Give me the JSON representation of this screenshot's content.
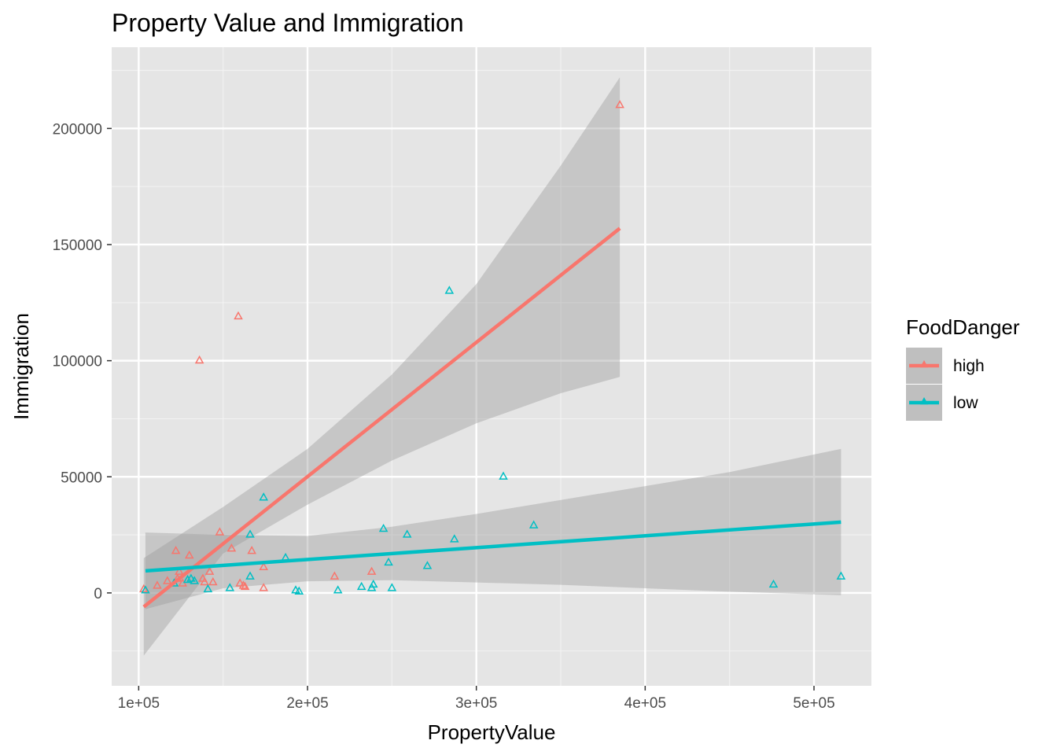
{
  "chart_data": {
    "type": "scatter",
    "title": "Property Value and Immigration",
    "xlabel": "PropertyValue",
    "ylabel": "Immigration",
    "xlim": [
      84000,
      534000
    ],
    "ylim": [
      -40000,
      235000
    ],
    "xticks": [
      100000,
      200000,
      300000,
      400000,
      500000
    ],
    "xtick_labels": [
      "1e+05",
      "2e+05",
      "3e+05",
      "4e+05",
      "5e+05"
    ],
    "yticks": [
      0,
      50000,
      100000,
      150000,
      200000
    ],
    "ytick_labels": [
      "0",
      "50000",
      "100000",
      "150000",
      "200000"
    ],
    "grid": true,
    "legend": {
      "title": "FoodDanger",
      "position": "right"
    },
    "series": [
      {
        "name": "high",
        "color": "#F8766D",
        "marker": "open-triangle",
        "points": [
          [
            103000,
            1500
          ],
          [
            111000,
            3000
          ],
          [
            117000,
            5000
          ],
          [
            122000,
            18000
          ],
          [
            123000,
            6000
          ],
          [
            124000,
            9000
          ],
          [
            126000,
            4000
          ],
          [
            130000,
            16000
          ],
          [
            136000,
            100000
          ],
          [
            138000,
            6000
          ],
          [
            139000,
            4500
          ],
          [
            142000,
            9000
          ],
          [
            144000,
            4500
          ],
          [
            148000,
            26000
          ],
          [
            155000,
            19000
          ],
          [
            159000,
            119000
          ],
          [
            160000,
            4000
          ],
          [
            162000,
            3000
          ],
          [
            163000,
            2500
          ],
          [
            167000,
            18000
          ],
          [
            174000,
            11000
          ],
          [
            174000,
            2000
          ],
          [
            216000,
            7000
          ],
          [
            238000,
            9000
          ],
          [
            385000,
            210000
          ]
        ],
        "trend": {
          "x": [
            103000,
            385000
          ],
          "y": [
            -6000,
            157000
          ]
        },
        "band": {
          "x": [
            103000,
            150000,
            200000,
            250000,
            300000,
            350000,
            385000
          ],
          "lower": [
            -27000,
            17000,
            38000,
            57000,
            73000,
            86000,
            93000
          ],
          "upper": [
            15000,
            37000,
            62000,
            94000,
            133000,
            184000,
            222000
          ]
        }
      },
      {
        "name": "low",
        "color": "#00BFC4",
        "marker": "open-triangle",
        "points": [
          [
            104000,
            1000
          ],
          [
            121000,
            4000
          ],
          [
            129000,
            5500
          ],
          [
            131000,
            6000
          ],
          [
            133000,
            5000
          ],
          [
            141000,
            1500
          ],
          [
            154000,
            2000
          ],
          [
            166000,
            25000
          ],
          [
            166000,
            7000
          ],
          [
            174000,
            41000
          ],
          [
            187000,
            15000
          ],
          [
            193000,
            1000
          ],
          [
            195000,
            500
          ],
          [
            218000,
            1000
          ],
          [
            232000,
            2500
          ],
          [
            238000,
            2000
          ],
          [
            239000,
            3500
          ],
          [
            245000,
            27500
          ],
          [
            248000,
            13000
          ],
          [
            250000,
            2000
          ],
          [
            259000,
            25000
          ],
          [
            271000,
            11500
          ],
          [
            284000,
            130000
          ],
          [
            287000,
            23000
          ],
          [
            316000,
            50000
          ],
          [
            334000,
            29000
          ],
          [
            476000,
            3500
          ],
          [
            516000,
            7000
          ]
        ],
        "trend": {
          "x": [
            104000,
            516000
          ],
          "y": [
            9500,
            30500
          ]
        },
        "band": {
          "x": [
            104000,
            150000,
            200000,
            250000,
            300000,
            350000,
            400000,
            450000,
            516000
          ],
          "lower": [
            -7000,
            2000,
            5000,
            5500,
            4500,
            3500,
            2000,
            500,
            -1000
          ],
          "upper": [
            26000,
            25000,
            24500,
            28500,
            34000,
            40000,
            46000,
            52000,
            62000
          ]
        }
      }
    ]
  }
}
